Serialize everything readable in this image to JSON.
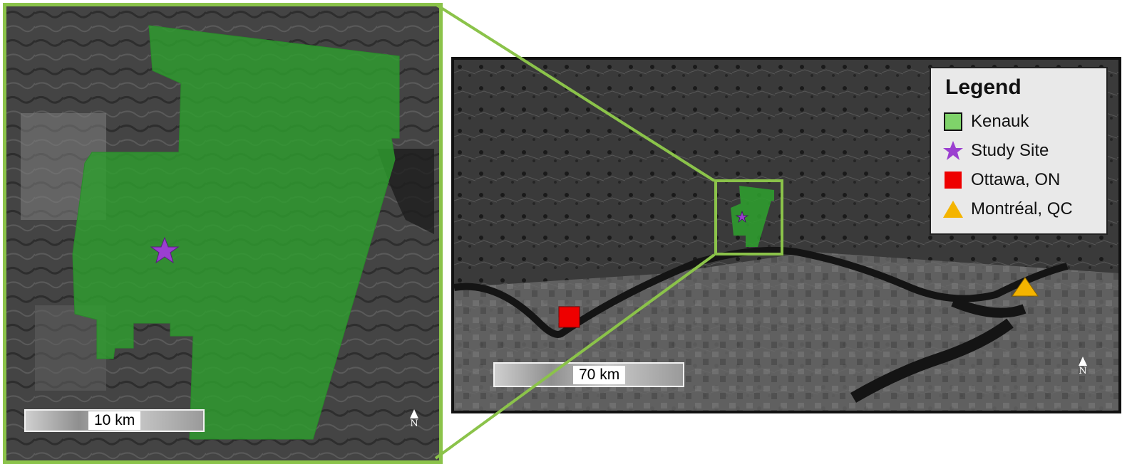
{
  "colors": {
    "kenauk_fill": "#2e9e2e",
    "inset_frame": "#8bc34a",
    "study_site": "#9b3fd0",
    "ottawa": "#ee0000",
    "montreal": "#f4b400"
  },
  "legend": {
    "title": "Legend",
    "items": [
      {
        "label": "Kenauk",
        "icon": "green-square-icon"
      },
      {
        "label": "Study Site",
        "icon": "purple-star-icon"
      },
      {
        "label": "Ottawa, ON",
        "icon": "red-square-icon"
      },
      {
        "label": "Montréal, QC",
        "icon": "orange-triangle-icon"
      }
    ]
  },
  "inset": {
    "scale_label": "10 km",
    "north_label": "N"
  },
  "overview": {
    "scale_label": "70 km",
    "north_label": "N"
  }
}
